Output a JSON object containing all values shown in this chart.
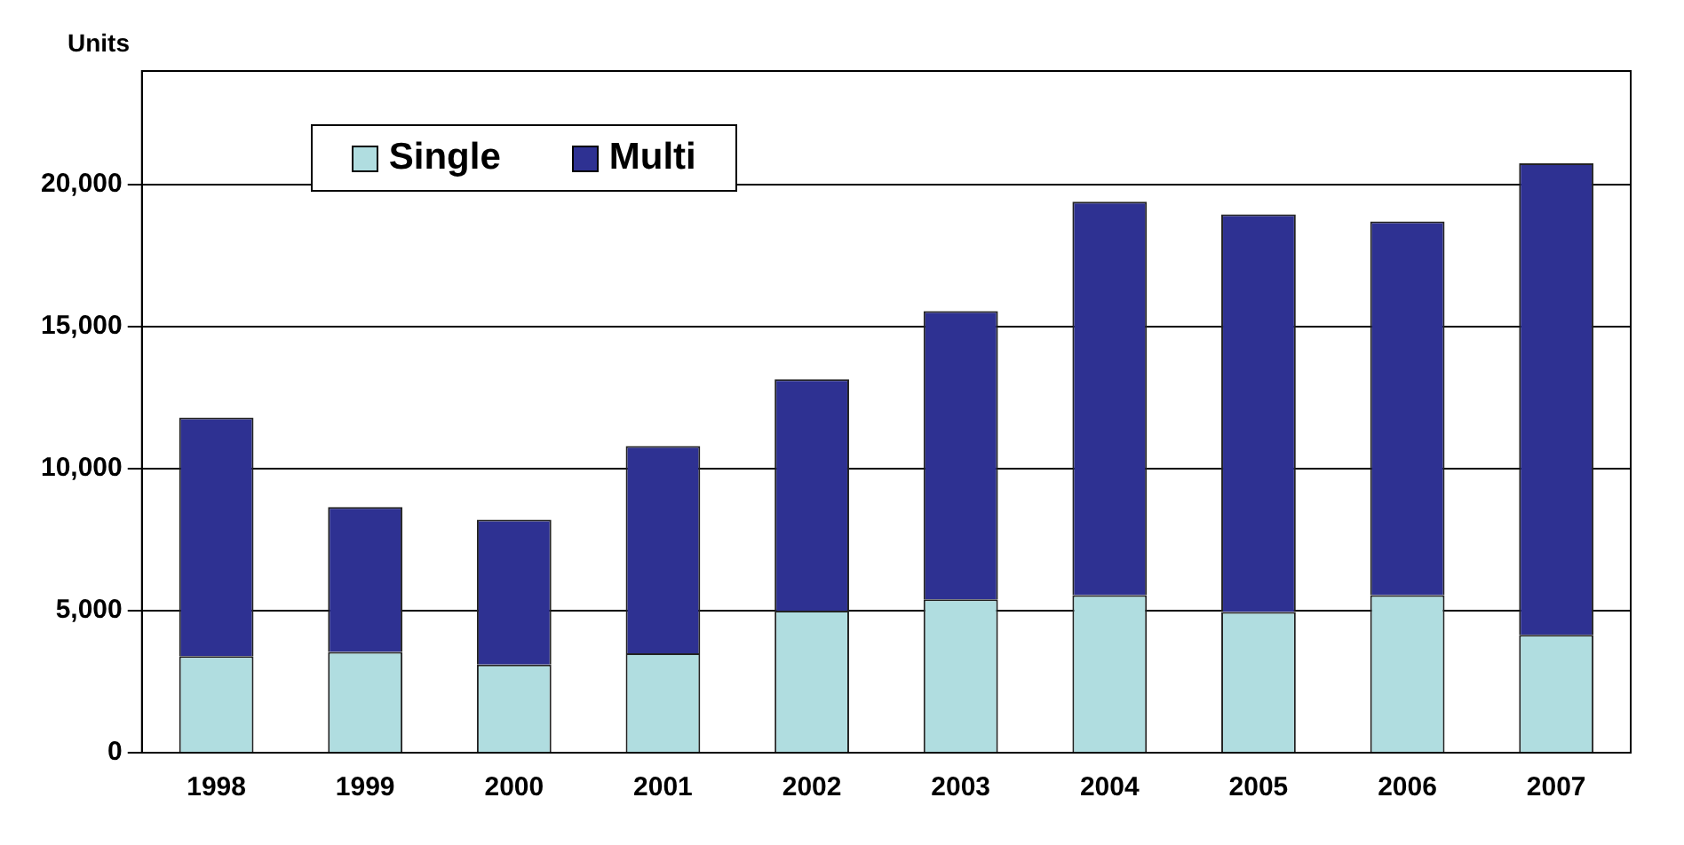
{
  "chart_data": {
    "type": "bar",
    "stacked": true,
    "ylabel": "Units",
    "categories": [
      "1998",
      "1999",
      "2000",
      "2001",
      "2002",
      "2003",
      "2004",
      "2005",
      "2006",
      "2007"
    ],
    "series": [
      {
        "name": "Single",
        "color": "#b0dde0",
        "values": [
          3400,
          3550,
          3100,
          3500,
          5000,
          5400,
          5550,
          4950,
          5550,
          4150
        ]
      },
      {
        "name": "Multi",
        "color": "#2e3192",
        "values": [
          8400,
          5100,
          5100,
          7300,
          8150,
          10150,
          13850,
          14000,
          13150,
          16600
        ]
      }
    ],
    "ylim": [
      0,
      24000
    ],
    "yticks": [
      {
        "value": 0,
        "label": "0"
      },
      {
        "value": 5000,
        "label": "5,000"
      },
      {
        "value": 10000,
        "label": "10,000"
      },
      {
        "value": 15000,
        "label": "15,000"
      },
      {
        "value": 20000,
        "label": "20,000"
      }
    ],
    "grid": "y",
    "legend": "top left"
  }
}
